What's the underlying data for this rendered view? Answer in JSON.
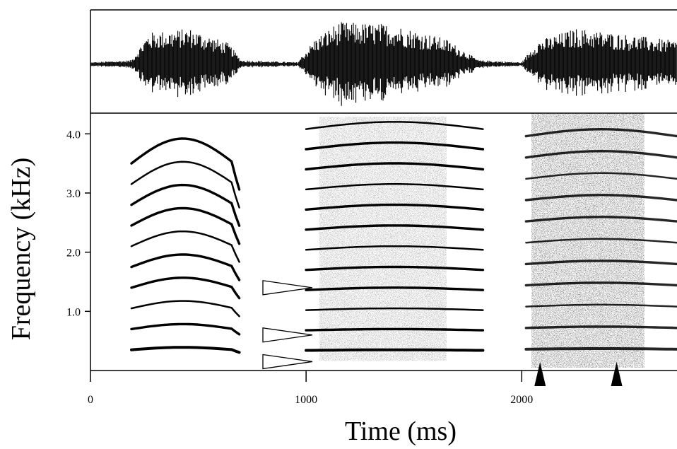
{
  "chart_data": {
    "type": "spectrogram",
    "xlabel": "Time (ms)",
    "ylabel": "Frequency (kHz)",
    "xlim": [
      0,
      2720
    ],
    "ylim": [
      0,
      4.35
    ],
    "x_ticks": [
      {
        "value": 0,
        "label": "0"
      },
      {
        "value": 1000,
        "label": "1000"
      },
      {
        "value": 2000,
        "label": "2000"
      }
    ],
    "y_ticks": [
      {
        "value": 1.0,
        "label": "1.0"
      },
      {
        "value": 2.0,
        "label": "2.0"
      },
      {
        "value": 3.0,
        "label": "3.0"
      },
      {
        "value": 4.0,
        "label": "4.0"
      }
    ],
    "segments": [
      {
        "start_ms": 190,
        "end_ms": 690,
        "f0_khz": 0.35,
        "harmonics": 10,
        "noise": 0.0,
        "contour": "arch"
      },
      {
        "start_ms": 1000,
        "end_ms": 1820,
        "f0_khz": 0.34,
        "harmonics": 13,
        "noise": 0.55,
        "contour": "flat"
      },
      {
        "start_ms": 2020,
        "end_ms": 2720,
        "f0_khz": 0.36,
        "harmonics": 11,
        "noise": 0.9,
        "contour": "flat"
      }
    ],
    "waveform_envelope": [
      {
        "t": 0,
        "a": 0.05
      },
      {
        "t": 190,
        "a": 0.1
      },
      {
        "t": 270,
        "a": 0.75
      },
      {
        "t": 460,
        "a": 0.85
      },
      {
        "t": 640,
        "a": 0.5
      },
      {
        "t": 700,
        "a": 0.1
      },
      {
        "t": 960,
        "a": 0.05
      },
      {
        "t": 1040,
        "a": 0.6
      },
      {
        "t": 1150,
        "a": 1.0
      },
      {
        "t": 1400,
        "a": 0.95
      },
      {
        "t": 1650,
        "a": 0.6
      },
      {
        "t": 1800,
        "a": 0.1
      },
      {
        "t": 2000,
        "a": 0.05
      },
      {
        "t": 2070,
        "a": 0.55
      },
      {
        "t": 2250,
        "a": 0.85
      },
      {
        "t": 2500,
        "a": 0.7
      },
      {
        "t": 2720,
        "a": 0.55
      }
    ],
    "open_markers_khz": [
      1.4,
      0.6,
      0.15
    ],
    "filled_markers_ms": [
      2085,
      2440
    ]
  }
}
